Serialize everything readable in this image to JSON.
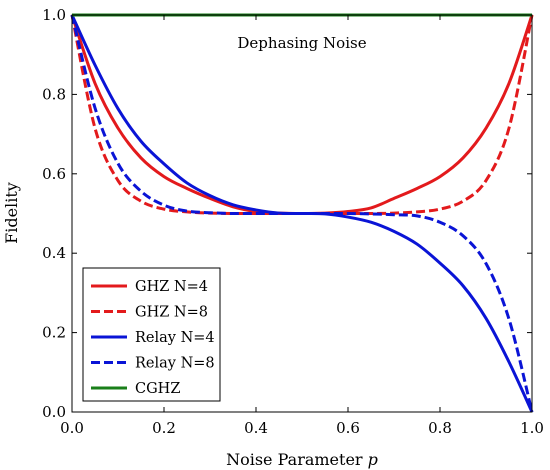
{
  "chart_data": {
    "type": "line",
    "title": "",
    "annotation": "Dephasing Noise",
    "xlabel_text": "Noise Parameter ",
    "xlabel_var": "p",
    "ylabel": "Fidelity",
    "xlim": [
      0,
      1
    ],
    "ylim": [
      0,
      1
    ],
    "xticks": [
      "0.0",
      "0.2",
      "0.4",
      "0.6",
      "0.8",
      "1.0"
    ],
    "yticks": [
      "0.0",
      "0.2",
      "0.4",
      "0.6",
      "0.8",
      "1.0"
    ],
    "grid": false,
    "legend_position": "bottom-left",
    "x": [
      0,
      0.05,
      0.1,
      0.15,
      0.2,
      0.25,
      0.3,
      0.35,
      0.4,
      0.45,
      0.5,
      0.55,
      0.6,
      0.65,
      0.7,
      0.75,
      0.8,
      0.85,
      0.9,
      0.95,
      1
    ],
    "series": [
      {
        "name": "GHZ N=4",
        "color": "#e31a1c",
        "dash": "solid",
        "values": [
          1.0,
          0.828,
          0.715,
          0.64,
          0.593,
          0.563,
          0.538,
          0.517,
          0.505,
          0.501,
          0.5,
          0.501,
          0.505,
          0.514,
          0.538,
          0.563,
          0.593,
          0.64,
          0.715,
          0.828,
          1.0
        ]
      },
      {
        "name": "GHZ N=8",
        "color": "#e31a1c",
        "dash": "dashed",
        "values": [
          1.0,
          0.715,
          0.583,
          0.531,
          0.511,
          0.504,
          0.501,
          0.5,
          0.5,
          0.5,
          0.5,
          0.5,
          0.5,
          0.5,
          0.501,
          0.504,
          0.511,
          0.531,
          0.583,
          0.715,
          1.0
        ]
      },
      {
        "name": "Relay N=4",
        "color": "#0a14d6",
        "dash": "solid",
        "values": [
          1.0,
          0.874,
          0.764,
          0.682,
          0.625,
          0.577,
          0.545,
          0.522,
          0.509,
          0.501,
          0.5,
          0.499,
          0.491,
          0.478,
          0.455,
          0.423,
          0.375,
          0.318,
          0.236,
          0.126,
          0.0
        ]
      },
      {
        "name": "Relay N=8",
        "color": "#0a14d6",
        "dash": "dashed",
        "values": [
          1.0,
          0.766,
          0.626,
          0.556,
          0.521,
          0.506,
          0.502,
          0.5,
          0.5,
          0.5,
          0.5,
          0.5,
          0.5,
          0.499,
          0.497,
          0.494,
          0.478,
          0.444,
          0.374,
          0.234,
          0.0
        ]
      },
      {
        "name": "CGHZ",
        "color": "#1a7f1a",
        "dash": "solid",
        "values": [
          1.0,
          1.0,
          1.0,
          1.0,
          1.0,
          1.0,
          1.0,
          1.0,
          1.0,
          1.0,
          1.0,
          1.0,
          1.0,
          1.0,
          1.0,
          1.0,
          1.0,
          1.0,
          1.0,
          1.0,
          1.0
        ]
      }
    ]
  }
}
